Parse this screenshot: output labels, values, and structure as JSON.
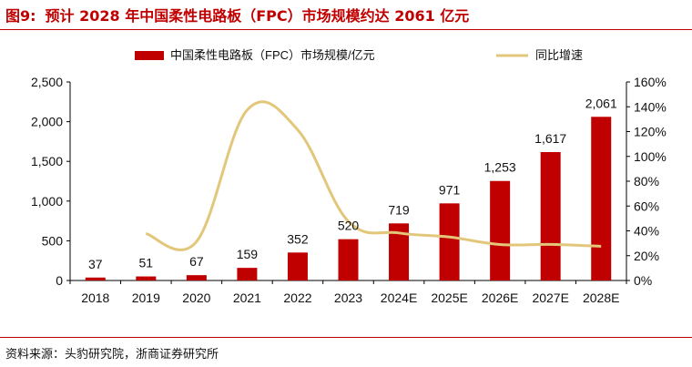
{
  "figure": {
    "label": "图9:",
    "title": "预计 2028 年中国柔性电路板（FPC）市场规模约达 2061 亿元",
    "source": "资料来源：头豹研究院，浙商证券研究所"
  },
  "colors": {
    "bar": "#c00000",
    "line": "#e2c77b",
    "rule": "#c00000"
  },
  "chart_data": {
    "type": "bar",
    "categories": [
      "2018",
      "2019",
      "2020",
      "2021",
      "2022",
      "2023",
      "2024E",
      "2025E",
      "2026E",
      "2027E",
      "2028E"
    ],
    "series": [
      {
        "name": "中国柔性电路板（FPC）市场规模/亿元",
        "type": "bar",
        "axis": "left",
        "values": [
          37,
          51,
          67,
          159,
          352,
          520,
          719,
          971,
          1253,
          1617,
          2061
        ],
        "labels": [
          "37",
          "51",
          "67",
          "159",
          "352",
          "520",
          "719",
          "971",
          "1,253",
          "1,617",
          "2,061"
        ]
      },
      {
        "name": "同比增速",
        "type": "line",
        "axis": "right",
        "values": [
          null,
          37.8,
          31.4,
          137.3,
          121.4,
          47.7,
          38.3,
          35.0,
          29.0,
          29.1,
          27.5
        ]
      }
    ],
    "y_left": {
      "ylim": [
        0,
        2500
      ],
      "ticks": [
        "0",
        "500",
        "1,000",
        "1,500",
        "2,000",
        "2,500"
      ]
    },
    "y_right": {
      "ylim": [
        0,
        160
      ],
      "ticks": [
        "0%",
        "20%",
        "40%",
        "60%",
        "80%",
        "100%",
        "120%",
        "140%",
        "160%"
      ]
    },
    "legend_position": "top-center",
    "grid": false
  }
}
